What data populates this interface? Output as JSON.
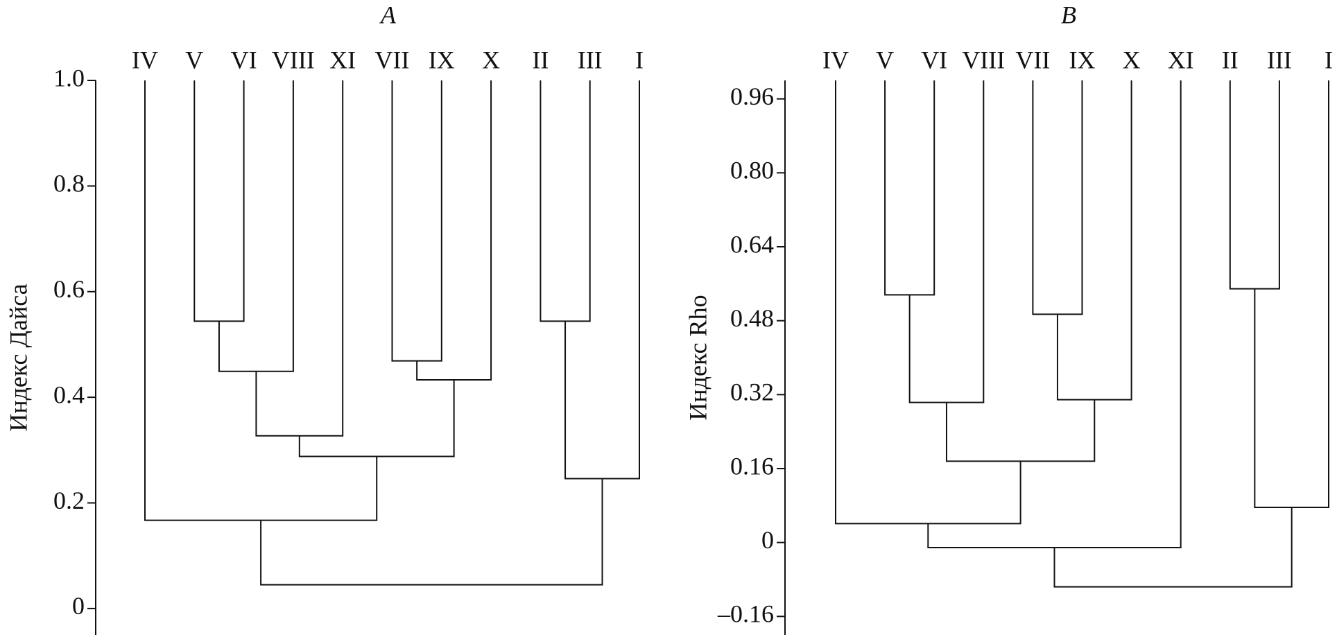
{
  "chart_data": [
    {
      "type": "dendrogram",
      "title": "A",
      "ylabel": "Индекс Дайса",
      "leaves": [
        "IV",
        "V",
        "VI",
        "VIII",
        "XI",
        "VII",
        "IX",
        "X",
        "II",
        "III",
        "I"
      ],
      "merges": [
        [
          1,
          2,
          0.544
        ],
        [
          11,
          3,
          0.449
        ],
        [
          12,
          4,
          0.327
        ],
        [
          5,
          6,
          0.469
        ],
        [
          14,
          7,
          0.433
        ],
        [
          13,
          15,
          0.288
        ],
        [
          0,
          16,
          0.167
        ],
        [
          8,
          9,
          0.544
        ],
        [
          18,
          10,
          0.246
        ],
        [
          17,
          19,
          0.045
        ]
      ],
      "ylim": [
        -0.05,
        1.0
      ],
      "yticks": [
        0,
        0.2,
        0.4,
        0.6,
        0.8,
        {
          "value": 1,
          "label": "1.0"
        }
      ]
    },
    {
      "type": "dendrogram",
      "title": "B",
      "ylabel": "Индекс Rho",
      "leaves": [
        "IV",
        "V",
        "VI",
        "VIII",
        "VII",
        "IX",
        "X",
        "XI",
        "II",
        "III",
        "I"
      ],
      "merges": [
        [
          1,
          2,
          0.536
        ],
        [
          11,
          3,
          0.303
        ],
        [
          4,
          5,
          0.494
        ],
        [
          13,
          6,
          0.309
        ],
        [
          12,
          14,
          0.176
        ],
        [
          0,
          15,
          0.041
        ],
        [
          16,
          7,
          -0.011
        ],
        [
          8,
          9,
          0.549
        ],
        [
          18,
          10,
          0.076
        ],
        [
          17,
          19,
          -0.096
        ]
      ],
      "ylim": [
        -0.2,
        1.0
      ],
      "yticks": [
        {
          "value": -0.16,
          "label": "–0.16"
        },
        0,
        0.16,
        0.32,
        0.48,
        0.64,
        {
          "value": 0.8,
          "label": "0.80"
        },
        0.96
      ]
    }
  ]
}
